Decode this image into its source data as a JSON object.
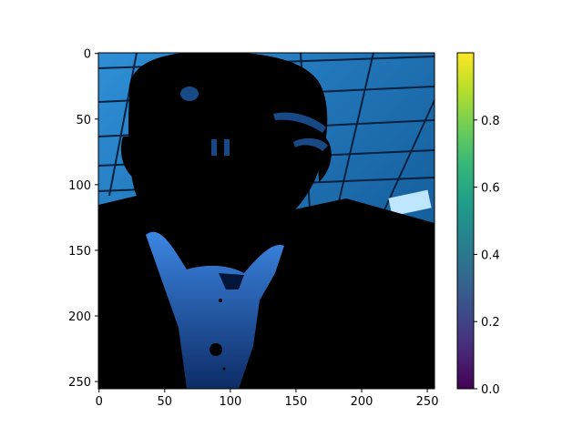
{
  "chart_data": {
    "type": "heatmap",
    "title": "",
    "xlabel": "",
    "ylabel": "",
    "image_description_free": true,
    "image_shape": [
      256,
      256
    ],
    "xlim": [
      0,
      255
    ],
    "ylim": [
      255,
      0
    ],
    "x_ticks": [
      0,
      50,
      100,
      150,
      200,
      250
    ],
    "y_ticks": [
      0,
      50,
      100,
      150,
      200,
      250
    ],
    "x_tick_labels": [
      "0",
      "50",
      "100",
      "150",
      "200",
      "250"
    ],
    "y_tick_labels": [
      "0",
      "50",
      "100",
      "150",
      "200",
      "250"
    ],
    "colorbar": {
      "colormap": "viridis",
      "range": [
        0.0,
        1.0
      ],
      "ticks": [
        0.0,
        0.2,
        0.4,
        0.6,
        0.8
      ],
      "tick_labels": [
        "0.0",
        "0.2",
        "0.4",
        "0.6",
        "0.8"
      ],
      "stops": [
        "#440154",
        "#482878",
        "#3e4a89",
        "#31688e",
        "#26828e",
        "#1f9e89",
        "#35b779",
        "#6ece58",
        "#b5de2b",
        "#fde725"
      ]
    }
  },
  "colors": {
    "ceiling_light": "#2f8fd6",
    "ceiling_dark": "#0d4f8a",
    "shirt_light": "#3c86e2",
    "shirt_dark": "#0d2c66",
    "silhouette": "#000000"
  }
}
